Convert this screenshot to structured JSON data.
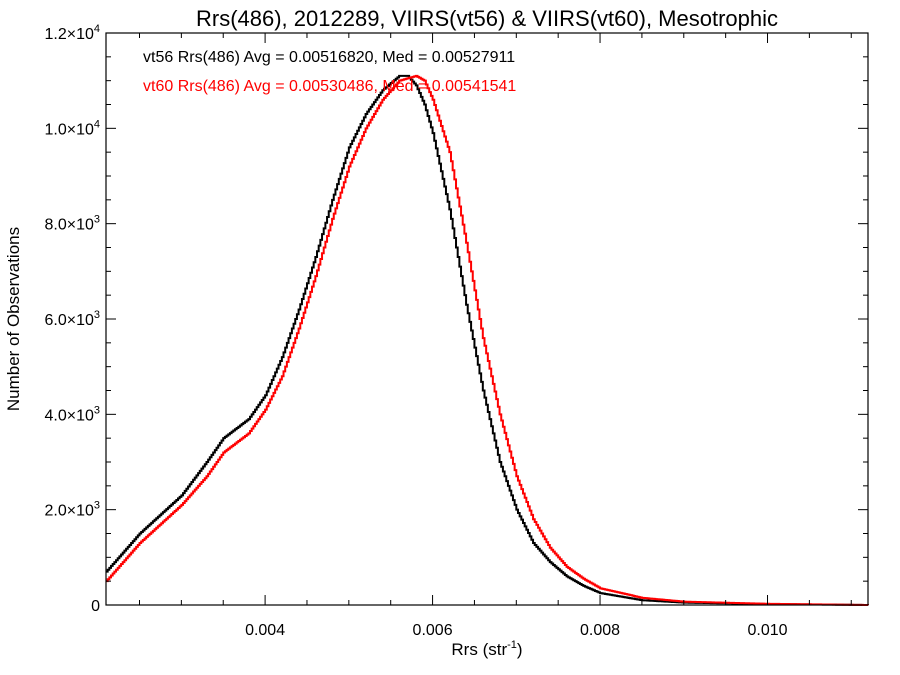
{
  "chart_data": {
    "type": "line",
    "title": "Rrs(486), 2012289, VIIRS(vt56) & VIIRS(vt60), Mesotrophic",
    "xlabel": "Rrs (str",
    "xlabel_sup": "-1",
    "xlabel_close": ")",
    "ylabel": "Number of Observations",
    "xlim": [
      0.0021,
      0.0112
    ],
    "ylim": [
      0,
      12000
    ],
    "grid": false,
    "x_ticks": [
      0.004,
      0.006,
      0.008,
      0.01
    ],
    "x_tick_labels": [
      "0.004",
      "0.006",
      "0.008",
      "0.010"
    ],
    "y_ticks": [
      0,
      2000,
      4000,
      6000,
      8000,
      10000,
      12000
    ],
    "y_tick_labels": [
      {
        "mant": "0",
        "exp": ""
      },
      {
        "mant": "2.0×10",
        "exp": "3"
      },
      {
        "mant": "4.0×10",
        "exp": "3"
      },
      {
        "mant": "6.0×10",
        "exp": "3"
      },
      {
        "mant": "8.0×10",
        "exp": "3"
      },
      {
        "mant": "1.0×10",
        "exp": "4"
      },
      {
        "mant": "1.2×10",
        "exp": "4"
      }
    ],
    "annotations": [
      "vt56 Rrs(486) Avg = 0.00516820, Med = 0.00527911",
      "vt60 Rrs(486) Avg = 0.00530486, Med = 0.00541541"
    ],
    "series": [
      {
        "name": "vt56",
        "color": "#000000",
        "x": [
          0.0021,
          0.0025,
          0.003,
          0.0033,
          0.0035,
          0.0038,
          0.004,
          0.0042,
          0.0044,
          0.0046,
          0.0048,
          0.005,
          0.0052,
          0.0054,
          0.0056,
          0.0057,
          0.0058,
          0.0059,
          0.006,
          0.0062,
          0.0064,
          0.0066,
          0.0068,
          0.007,
          0.0072,
          0.0074,
          0.0076,
          0.0078,
          0.008,
          0.0085,
          0.009,
          0.01,
          0.0112
        ],
        "y": [
          700,
          1500,
          2300,
          3000,
          3500,
          3900,
          4400,
          5200,
          6200,
          7300,
          8500,
          9600,
          10300,
          10800,
          11100,
          11100,
          10900,
          10500,
          9900,
          8300,
          6300,
          4500,
          3000,
          2000,
          1300,
          900,
          600,
          400,
          250,
          100,
          50,
          20,
          0
        ]
      },
      {
        "name": "vt60",
        "color": "#ff0000",
        "x": [
          0.0021,
          0.0025,
          0.003,
          0.0033,
          0.0035,
          0.0038,
          0.004,
          0.0042,
          0.0044,
          0.0046,
          0.0048,
          0.005,
          0.0052,
          0.0054,
          0.0056,
          0.0058,
          0.0059,
          0.006,
          0.0062,
          0.0064,
          0.0066,
          0.0068,
          0.007,
          0.0072,
          0.0074,
          0.0076,
          0.0078,
          0.008,
          0.0085,
          0.009,
          0.01,
          0.0112
        ],
        "y": [
          500,
          1300,
          2100,
          2700,
          3200,
          3600,
          4100,
          4800,
          5800,
          6900,
          8100,
          9200,
          10000,
          10600,
          11000,
          11100,
          11000,
          10600,
          9500,
          7600,
          5600,
          4000,
          2700,
          1800,
          1200,
          800,
          550,
          350,
          150,
          70,
          25,
          0
        ]
      }
    ]
  }
}
